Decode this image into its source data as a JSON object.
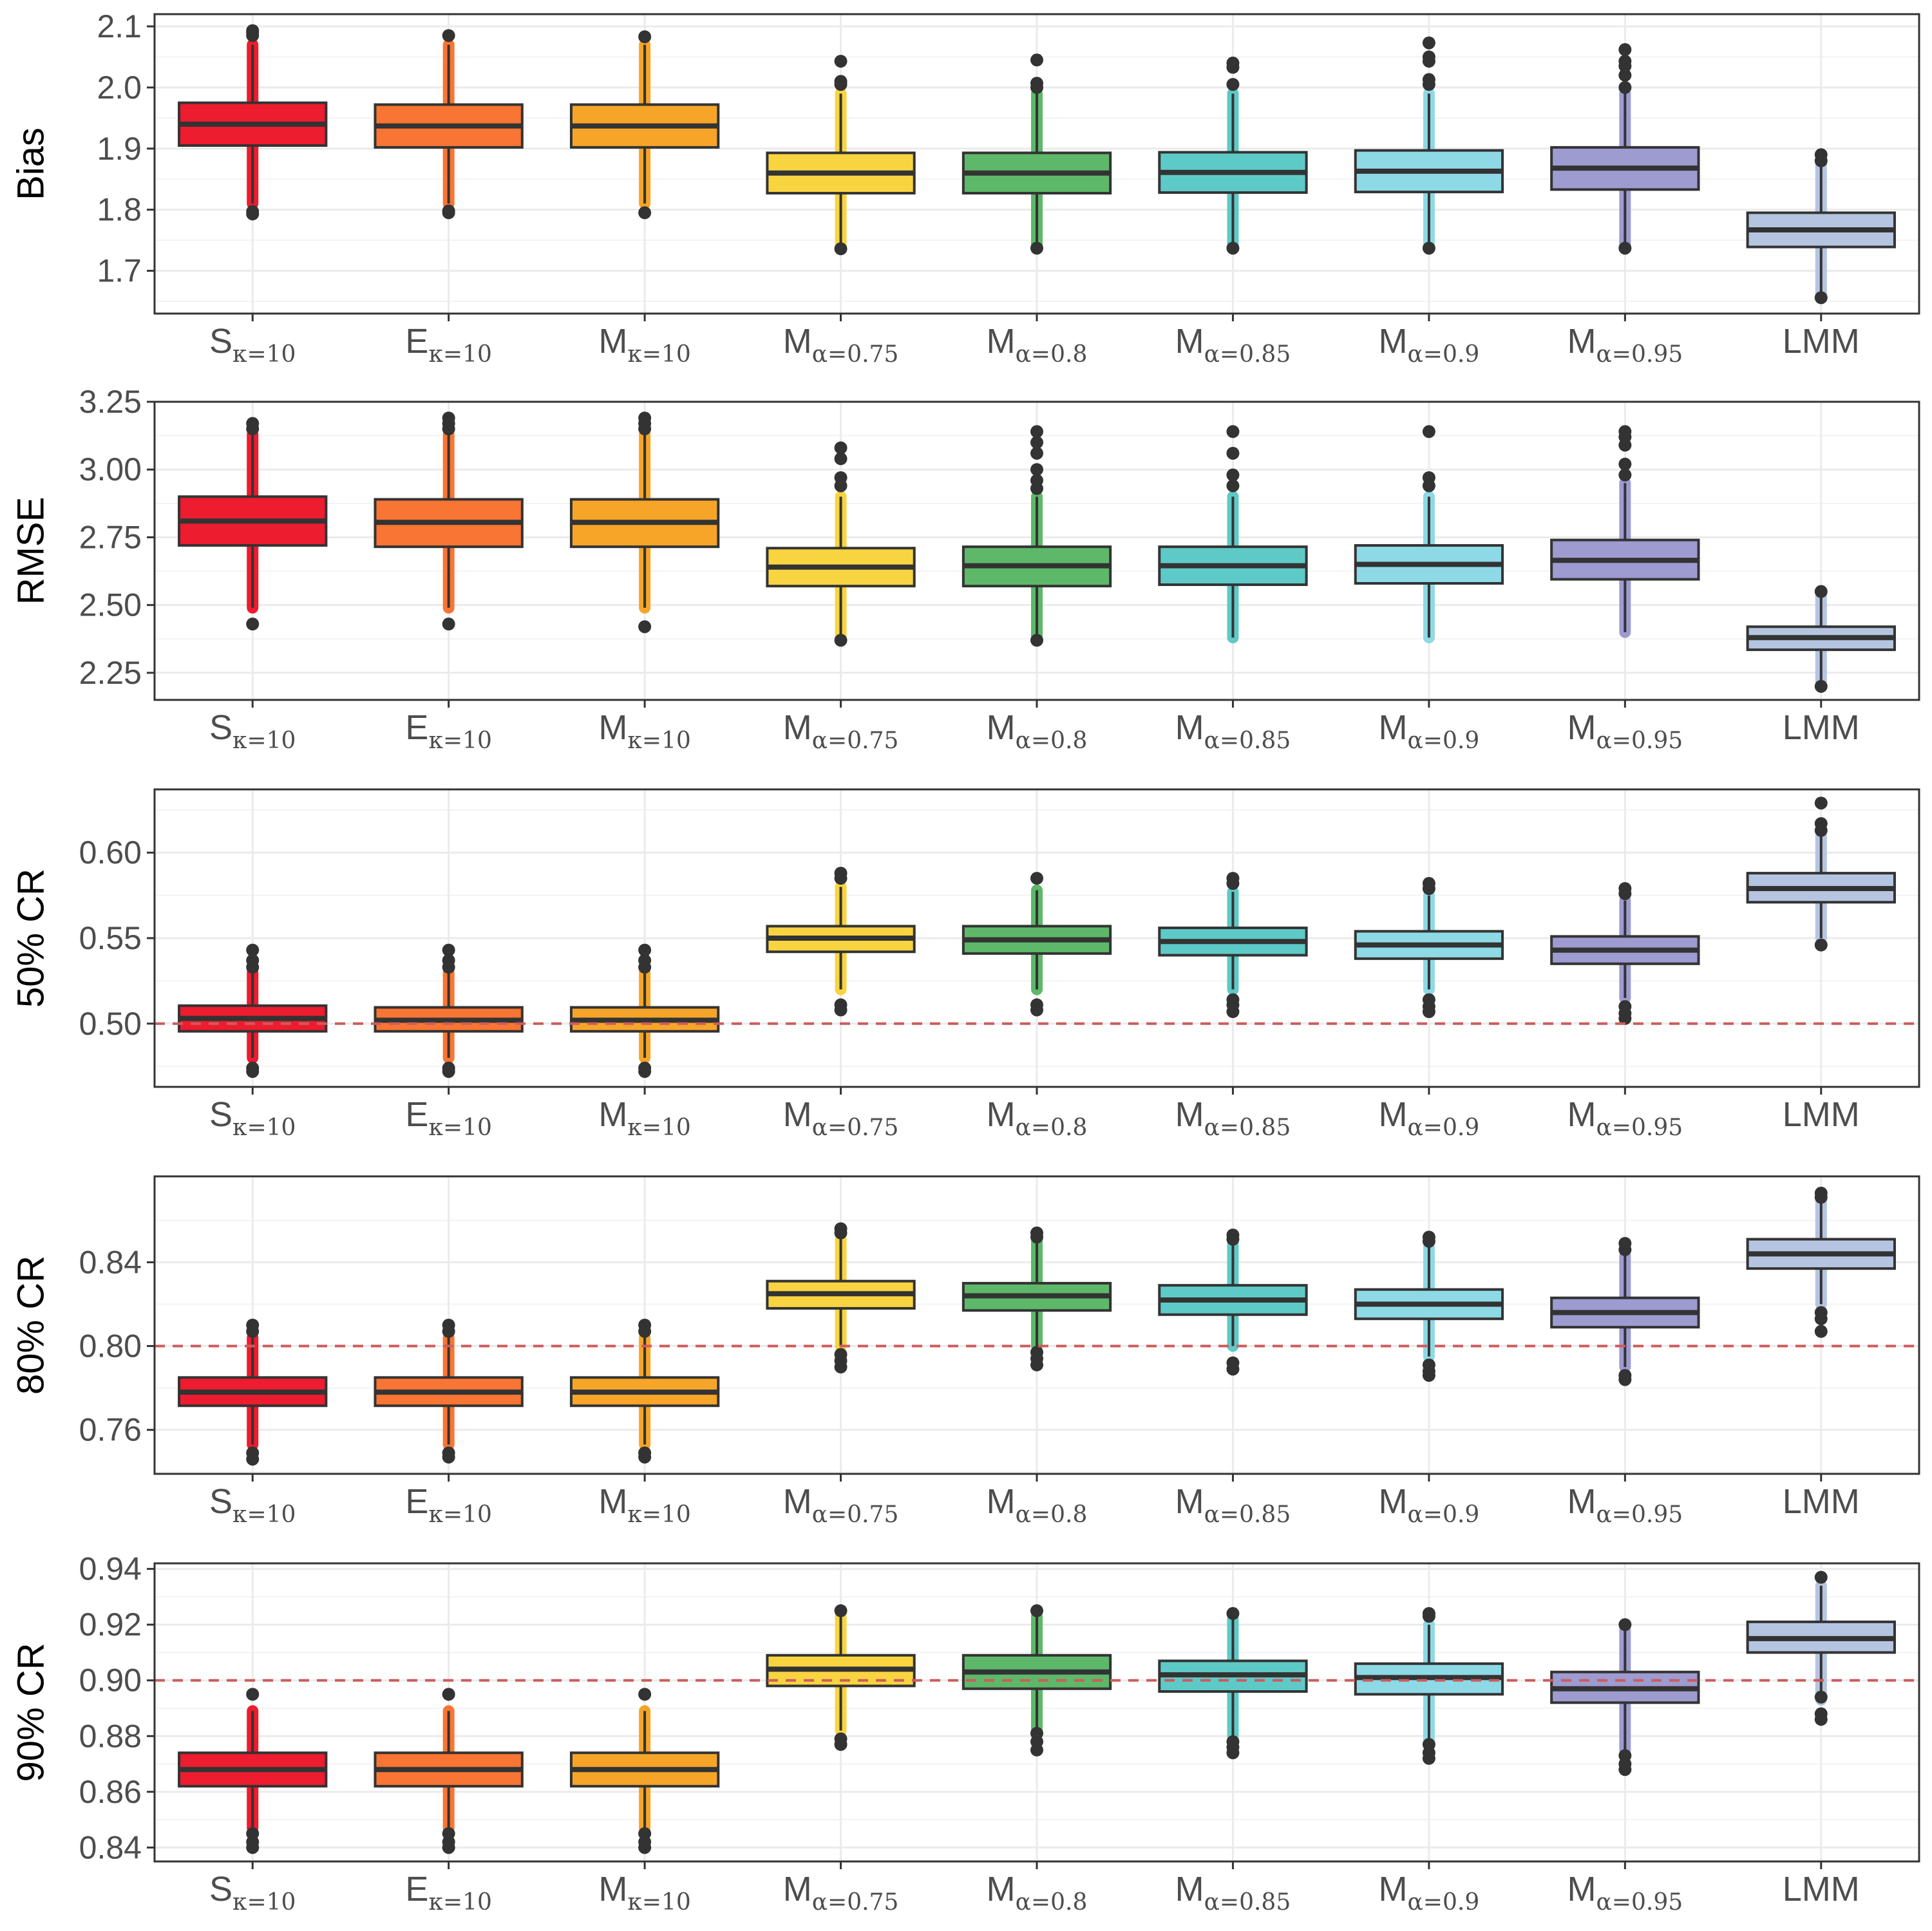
{
  "chart_data": [
    {
      "type": "boxplot",
      "ylabel": "Bias",
      "ylim": [
        1.63,
        2.12
      ],
      "yticks": [
        "1.7",
        "1.8",
        "1.9",
        "2.0",
        "2.1"
      ],
      "ytick_values": [
        1.7,
        1.8,
        1.9,
        2.0,
        2.1
      ],
      "reference_line": null,
      "categories": [
        {
          "main": "S",
          "sub": "κ=10"
        },
        {
          "main": "E",
          "sub": "κ=10"
        },
        {
          "main": "M",
          "sub": "κ=10"
        },
        {
          "main": "M",
          "sub": "α=0.75"
        },
        {
          "main": "M",
          "sub": "α=0.8"
        },
        {
          "main": "M",
          "sub": "α=0.85"
        },
        {
          "main": "M",
          "sub": "α=0.9"
        },
        {
          "main": "M",
          "sub": "α=0.95"
        },
        {
          "main": "LMM",
          "sub": ""
        }
      ],
      "boxes": [
        {
          "q1": 1.905,
          "median": 1.94,
          "q3": 1.975,
          "whisker_low": 1.81,
          "whisker_high": 2.07,
          "outliers": [
            1.793,
            1.797,
            2.085,
            2.09,
            2.093
          ]
        },
        {
          "q1": 1.902,
          "median": 1.937,
          "q3": 1.972,
          "whisker_low": 1.81,
          "whisker_high": 2.07,
          "outliers": [
            1.795,
            1.798,
            2.085
          ]
        },
        {
          "q1": 1.902,
          "median": 1.937,
          "q3": 1.972,
          "whisker_low": 1.81,
          "whisker_high": 2.07,
          "outliers": [
            1.795,
            2.083
          ]
        },
        {
          "q1": 1.827,
          "median": 1.86,
          "q3": 1.893,
          "whisker_low": 1.74,
          "whisker_high": 1.99,
          "outliers": [
            1.736,
            2.005,
            2.01,
            2.043
          ]
        },
        {
          "q1": 1.827,
          "median": 1.86,
          "q3": 1.893,
          "whisker_low": 1.74,
          "whisker_high": 1.99,
          "outliers": [
            1.737,
            2.0,
            2.007,
            2.045
          ]
        },
        {
          "q1": 1.828,
          "median": 1.861,
          "q3": 1.894,
          "whisker_low": 1.74,
          "whisker_high": 1.99,
          "outliers": [
            1.737,
            2.005,
            2.033,
            2.04
          ]
        },
        {
          "q1": 1.829,
          "median": 1.863,
          "q3": 1.897,
          "whisker_low": 1.74,
          "whisker_high": 1.99,
          "outliers": [
            1.737,
            2.005,
            2.013,
            2.043,
            2.05,
            2.073
          ]
        },
        {
          "q1": 1.833,
          "median": 1.868,
          "q3": 1.902,
          "whisker_low": 1.74,
          "whisker_high": 1.99,
          "outliers": [
            1.737,
            2.0,
            2.02,
            2.035,
            2.043,
            2.062
          ]
        },
        {
          "q1": 1.739,
          "median": 1.767,
          "q3": 1.795,
          "whisker_low": 1.66,
          "whisker_high": 1.875,
          "outliers": [
            1.656,
            1.88,
            1.89
          ]
        }
      ]
    },
    {
      "type": "boxplot",
      "ylabel": "RMSE",
      "ylim": [
        2.15,
        3.25
      ],
      "yticks": [
        "2.25",
        "2.50",
        "2.75",
        "3.00",
        "3.25"
      ],
      "ytick_values": [
        2.25,
        2.5,
        2.75,
        3.0,
        3.25
      ],
      "reference_line": null,
      "categories": [
        {
          "main": "S",
          "sub": "κ=10"
        },
        {
          "main": "E",
          "sub": "κ=10"
        },
        {
          "main": "M",
          "sub": "κ=10"
        },
        {
          "main": "M",
          "sub": "α=0.75"
        },
        {
          "main": "M",
          "sub": "α=0.8"
        },
        {
          "main": "M",
          "sub": "α=0.85"
        },
        {
          "main": "M",
          "sub": "α=0.9"
        },
        {
          "main": "M",
          "sub": "α=0.95"
        },
        {
          "main": "LMM",
          "sub": ""
        }
      ],
      "boxes": [
        {
          "q1": 2.72,
          "median": 2.81,
          "q3": 2.9,
          "whisker_low": 2.49,
          "whisker_high": 3.13,
          "outliers": [
            2.43,
            3.15,
            3.17
          ]
        },
        {
          "q1": 2.715,
          "median": 2.805,
          "q3": 2.89,
          "whisker_low": 2.49,
          "whisker_high": 3.13,
          "outliers": [
            2.43,
            3.15,
            3.17,
            3.19
          ]
        },
        {
          "q1": 2.715,
          "median": 2.805,
          "q3": 2.89,
          "whisker_low": 2.49,
          "whisker_high": 3.13,
          "outliers": [
            2.42,
            3.15,
            3.17,
            3.19
          ]
        },
        {
          "q1": 2.57,
          "median": 2.64,
          "q3": 2.71,
          "whisker_low": 2.38,
          "whisker_high": 2.9,
          "outliers": [
            2.37,
            2.94,
            2.97,
            3.04,
            3.08
          ]
        },
        {
          "q1": 2.57,
          "median": 2.645,
          "q3": 2.715,
          "whisker_low": 2.38,
          "whisker_high": 2.9,
          "outliers": [
            2.37,
            2.93,
            2.96,
            3.0,
            3.06,
            3.1,
            3.14
          ]
        },
        {
          "q1": 2.575,
          "median": 2.645,
          "q3": 2.715,
          "whisker_low": 2.38,
          "whisker_high": 2.9,
          "outliers": [
            2.94,
            2.98,
            3.06,
            3.14
          ]
        },
        {
          "q1": 2.58,
          "median": 2.65,
          "q3": 2.72,
          "whisker_low": 2.38,
          "whisker_high": 2.9,
          "outliers": [
            2.94,
            2.97,
            3.14
          ]
        },
        {
          "q1": 2.595,
          "median": 2.665,
          "q3": 2.74,
          "whisker_low": 2.4,
          "whisker_high": 2.95,
          "outliers": [
            2.98,
            3.02,
            3.09,
            3.12,
            3.14
          ]
        },
        {
          "q1": 2.335,
          "median": 2.38,
          "q3": 2.42,
          "whisker_low": 2.22,
          "whisker_high": 2.54,
          "outliers": [
            2.2,
            2.55
          ]
        }
      ]
    },
    {
      "type": "boxplot",
      "ylabel": "50% CR",
      "ylim": [
        0.463,
        0.637
      ],
      "yticks": [
        "0.50",
        "0.55",
        "0.60"
      ],
      "ytick_values": [
        0.5,
        0.55,
        0.6
      ],
      "reference_line": 0.5,
      "categories": [
        {
          "main": "S",
          "sub": "κ=10"
        },
        {
          "main": "E",
          "sub": "κ=10"
        },
        {
          "main": "M",
          "sub": "κ=10"
        },
        {
          "main": "M",
          "sub": "α=0.75"
        },
        {
          "main": "M",
          "sub": "α=0.8"
        },
        {
          "main": "M",
          "sub": "α=0.85"
        },
        {
          "main": "M",
          "sub": "α=0.9"
        },
        {
          "main": "M",
          "sub": "α=0.95"
        },
        {
          "main": "LMM",
          "sub": ""
        }
      ],
      "boxes": [
        {
          "q1": 0.4955,
          "median": 0.503,
          "q3": 0.5105,
          "whisker_low": 0.48,
          "whisker_high": 0.53,
          "outliers": [
            0.472,
            0.474,
            0.533,
            0.537,
            0.543
          ]
        },
        {
          "q1": 0.4955,
          "median": 0.502,
          "q3": 0.5095,
          "whisker_low": 0.48,
          "whisker_high": 0.53,
          "outliers": [
            0.472,
            0.474,
            0.533,
            0.537,
            0.543
          ]
        },
        {
          "q1": 0.4955,
          "median": 0.502,
          "q3": 0.5095,
          "whisker_low": 0.48,
          "whisker_high": 0.53,
          "outliers": [
            0.472,
            0.474,
            0.533,
            0.537,
            0.543
          ]
        },
        {
          "q1": 0.542,
          "median": 0.55,
          "q3": 0.557,
          "whisker_low": 0.52,
          "whisker_high": 0.58,
          "outliers": [
            0.508,
            0.511,
            0.585,
            0.588
          ]
        },
        {
          "q1": 0.541,
          "median": 0.549,
          "q3": 0.557,
          "whisker_low": 0.52,
          "whisker_high": 0.578,
          "outliers": [
            0.508,
            0.511,
            0.585
          ]
        },
        {
          "q1": 0.54,
          "median": 0.548,
          "q3": 0.556,
          "whisker_low": 0.52,
          "whisker_high": 0.577,
          "outliers": [
            0.507,
            0.511,
            0.514,
            0.582,
            0.585
          ]
        },
        {
          "q1": 0.538,
          "median": 0.546,
          "q3": 0.554,
          "whisker_low": 0.52,
          "whisker_high": 0.575,
          "outliers": [
            0.507,
            0.51,
            0.514,
            0.579,
            0.582
          ]
        },
        {
          "q1": 0.535,
          "median": 0.543,
          "q3": 0.551,
          "whisker_low": 0.515,
          "whisker_high": 0.572,
          "outliers": [
            0.503,
            0.506,
            0.51,
            0.576,
            0.579
          ]
        },
        {
          "q1": 0.571,
          "median": 0.579,
          "q3": 0.588,
          "whisker_low": 0.55,
          "whisker_high": 0.61,
          "outliers": [
            0.546,
            0.613,
            0.617,
            0.629
          ]
        }
      ]
    },
    {
      "type": "boxplot",
      "ylabel": "80% CR",
      "ylim": [
        0.739,
        0.881
      ],
      "yticks": [
        "0.76",
        "0.80",
        "0.84"
      ],
      "ytick_values": [
        0.76,
        0.8,
        0.84
      ],
      "reference_line": 0.8,
      "categories": [
        {
          "main": "S",
          "sub": "κ=10"
        },
        {
          "main": "E",
          "sub": "κ=10"
        },
        {
          "main": "M",
          "sub": "κ=10"
        },
        {
          "main": "M",
          "sub": "α=0.75"
        },
        {
          "main": "M",
          "sub": "α=0.8"
        },
        {
          "main": "M",
          "sub": "α=0.85"
        },
        {
          "main": "M",
          "sub": "α=0.9"
        },
        {
          "main": "M",
          "sub": "α=0.95"
        },
        {
          "main": "LMM",
          "sub": ""
        }
      ],
      "boxes": [
        {
          "q1": 0.7715,
          "median": 0.778,
          "q3": 0.785,
          "whisker_low": 0.753,
          "whisker_high": 0.804,
          "outliers": [
            0.746,
            0.749,
            0.807,
            0.81
          ]
        },
        {
          "q1": 0.7715,
          "median": 0.778,
          "q3": 0.785,
          "whisker_low": 0.753,
          "whisker_high": 0.804,
          "outliers": [
            0.747,
            0.749,
            0.807,
            0.81
          ]
        },
        {
          "q1": 0.7715,
          "median": 0.778,
          "q3": 0.785,
          "whisker_low": 0.753,
          "whisker_high": 0.804,
          "outliers": [
            0.747,
            0.749,
            0.807,
            0.81
          ]
        },
        {
          "q1": 0.818,
          "median": 0.825,
          "q3": 0.831,
          "whisker_low": 0.8,
          "whisker_high": 0.851,
          "outliers": [
            0.79,
            0.793,
            0.796,
            0.854,
            0.856
          ]
        },
        {
          "q1": 0.817,
          "median": 0.824,
          "q3": 0.83,
          "whisker_low": 0.8,
          "whisker_high": 0.85,
          "outliers": [
            0.791,
            0.794,
            0.797,
            0.852,
            0.854
          ]
        },
        {
          "q1": 0.815,
          "median": 0.822,
          "q3": 0.829,
          "whisker_low": 0.8,
          "whisker_high": 0.849,
          "outliers": [
            0.789,
            0.792,
            0.851,
            0.853
          ]
        },
        {
          "q1": 0.813,
          "median": 0.82,
          "q3": 0.827,
          "whisker_low": 0.795,
          "whisker_high": 0.847,
          "outliers": [
            0.786,
            0.788,
            0.791,
            0.85,
            0.852
          ]
        },
        {
          "q1": 0.809,
          "median": 0.816,
          "q3": 0.823,
          "whisker_low": 0.79,
          "whisker_high": 0.843,
          "outliers": [
            0.784,
            0.786,
            0.846,
            0.849
          ]
        },
        {
          "q1": 0.837,
          "median": 0.844,
          "q3": 0.851,
          "whisker_low": 0.82,
          "whisker_high": 0.869,
          "outliers": [
            0.807,
            0.813,
            0.816,
            0.871,
            0.873
          ]
        }
      ]
    },
    {
      "type": "boxplot",
      "ylabel": "90% CR",
      "ylim": [
        0.835,
        0.942
      ],
      "yticks": [
        "0.84",
        "0.86",
        "0.88",
        "0.90",
        "0.92",
        "0.94"
      ],
      "ytick_values": [
        0.84,
        0.86,
        0.88,
        0.9,
        0.92,
        0.94
      ],
      "reference_line": 0.9,
      "categories": [
        {
          "main": "S",
          "sub": "κ=10"
        },
        {
          "main": "E",
          "sub": "κ=10"
        },
        {
          "main": "M",
          "sub": "κ=10"
        },
        {
          "main": "M",
          "sub": "α=0.75"
        },
        {
          "main": "M",
          "sub": "α=0.8"
        },
        {
          "main": "M",
          "sub": "α=0.85"
        },
        {
          "main": "M",
          "sub": "α=0.9"
        },
        {
          "main": "M",
          "sub": "α=0.95"
        },
        {
          "main": "LMM",
          "sub": ""
        }
      ],
      "boxes": [
        {
          "q1": 0.862,
          "median": 0.868,
          "q3": 0.874,
          "whisker_low": 0.847,
          "whisker_high": 0.889,
          "outliers": [
            0.84,
            0.842,
            0.845,
            0.895
          ]
        },
        {
          "q1": 0.862,
          "median": 0.868,
          "q3": 0.874,
          "whisker_low": 0.847,
          "whisker_high": 0.889,
          "outliers": [
            0.84,
            0.842,
            0.845,
            0.895
          ]
        },
        {
          "q1": 0.862,
          "median": 0.868,
          "q3": 0.874,
          "whisker_low": 0.847,
          "whisker_high": 0.889,
          "outliers": [
            0.84,
            0.842,
            0.845,
            0.895
          ]
        },
        {
          "q1": 0.898,
          "median": 0.904,
          "q3": 0.909,
          "whisker_low": 0.882,
          "whisker_high": 0.923,
          "outliers": [
            0.877,
            0.879,
            0.925
          ]
        },
        {
          "q1": 0.897,
          "median": 0.903,
          "q3": 0.909,
          "whisker_low": 0.882,
          "whisker_high": 0.923,
          "outliers": [
            0.875,
            0.878,
            0.881,
            0.925
          ]
        },
        {
          "q1": 0.896,
          "median": 0.902,
          "q3": 0.907,
          "whisker_low": 0.88,
          "whisker_high": 0.922,
          "outliers": [
            0.874,
            0.876,
            0.878,
            0.924
          ]
        },
        {
          "q1": 0.895,
          "median": 0.901,
          "q3": 0.906,
          "whisker_low": 0.878,
          "whisker_high": 0.92,
          "outliers": [
            0.872,
            0.874,
            0.877,
            0.923,
            0.924
          ]
        },
        {
          "q1": 0.892,
          "median": 0.897,
          "q3": 0.903,
          "whisker_low": 0.875,
          "whisker_high": 0.918,
          "outliers": [
            0.868,
            0.87,
            0.873,
            0.92
          ]
        },
        {
          "q1": 0.91,
          "median": 0.915,
          "q3": 0.921,
          "whisker_low": 0.893,
          "whisker_high": 0.934,
          "outliers": [
            0.886,
            0.888,
            0.894,
            0.937
          ]
        }
      ]
    }
  ],
  "colors": {
    "fills": [
      "#ed1c2e",
      "#f97533",
      "#f6a529",
      "#f8d440",
      "#5db869",
      "#5ecac7",
      "#8ed9e6",
      "#9e9bd1",
      "#b5c5e1"
    ],
    "box_stroke": "#333333",
    "outlier": "#333333",
    "grid_major": "#ebebeb",
    "grid_minor": "#f3f3f3",
    "panel_border": "#333333",
    "reference_line": "#cd5c5c"
  }
}
